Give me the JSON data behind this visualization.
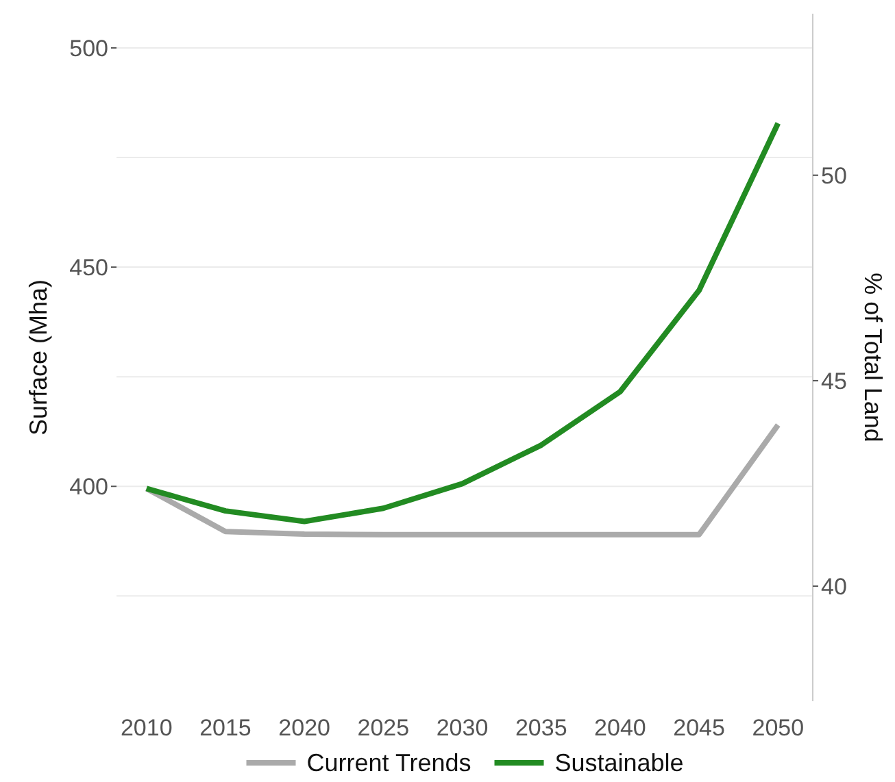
{
  "chart_data": {
    "type": "line",
    "ylabel": "Surface (Mha)",
    "y2label": "% of Total Land",
    "x": [
      2010,
      2015,
      2020,
      2025,
      2030,
      2035,
      2040,
      2045,
      2050
    ],
    "xlim": [
      2008.1,
      2052.2
    ],
    "xticks": [
      2010,
      2015,
      2020,
      2025,
      2030,
      2035,
      2040,
      2045,
      2050
    ],
    "ylim": [
      351,
      507.8
    ],
    "yticks": [
      {
        "value": 375,
        "label": null
      },
      400,
      {
        "value": 425,
        "label": null
      },
      450,
      {
        "value": 475,
        "label": null
      },
      500
    ],
    "y2lim": [
      37.2,
      53.93
    ],
    "y2ticks": [
      40,
      45,
      50
    ],
    "grid": "y",
    "legend": "bottom",
    "line_style": "solid",
    "marker": "none",
    "series": [
      {
        "name": "Current Trends",
        "color": "#aaaaaa",
        "values": [
          399.5,
          389.7,
          389.1,
          389,
          389,
          389,
          389,
          389,
          414
        ]
      },
      {
        "name": "Sustainable",
        "color": "#228b22",
        "values": [
          399.5,
          394.4,
          392,
          395,
          400.6,
          409.4,
          421.6,
          444.7,
          482.8
        ]
      }
    ]
  }
}
